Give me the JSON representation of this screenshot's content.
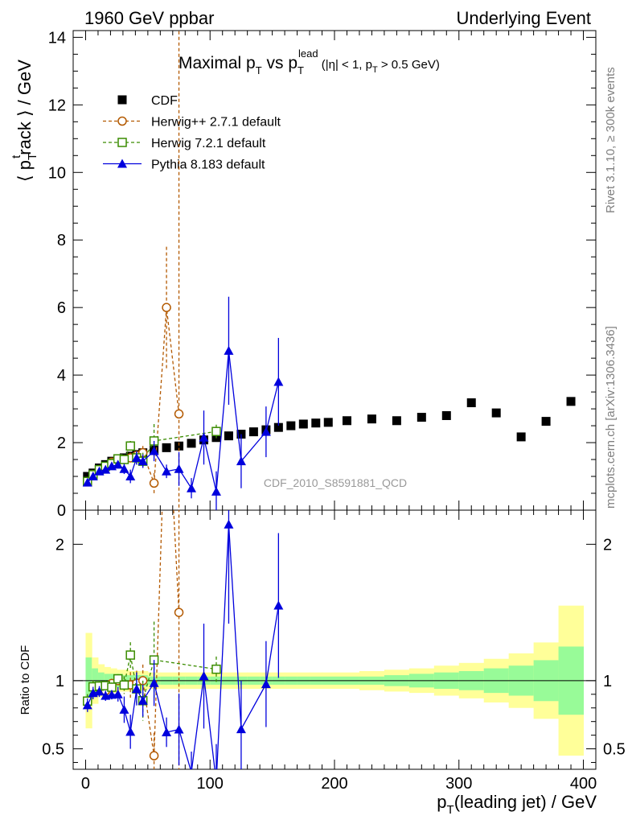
{
  "header": {
    "left": "1960 GeV ppbar",
    "right": "Underlying Event"
  },
  "side_labels": {
    "rivet": "Rivet 3.1.10, ≥ 300k events",
    "mcplots": "mcplots.cern.ch [arXiv:1306.3436]"
  },
  "watermark": "CDF_2010_S8591881_QCD",
  "title": {
    "main": "Maximal p",
    "sub_t": "T",
    "vs": " vs p",
    "sup_lead": "lead",
    "cut_open": " (|η| < 1, p",
    "cut_close": " > 0.5 GeV)"
  },
  "axis_labels": {
    "y_main": "⟨ p",
    "y_track_sup": "t",
    "y_track": "rack ⟩ / GeV",
    "y_ratio": "Ratio to CDF",
    "x_p": "p",
    "x_rest": "(leading jet) / GeV"
  },
  "colors": {
    "cdf": "#000000",
    "herwigpp": "#b35900",
    "herwig7": "#3a8c00",
    "pythia": "#0000dd",
    "band_inner": "#98fb98",
    "band_outer": "#ffff99"
  },
  "legend": [
    {
      "key": "cdf",
      "label": "CDF"
    },
    {
      "key": "herwigpp",
      "label": "Herwig++ 2.7.1 default"
    },
    {
      "key": "herwig7",
      "label": "Herwig 7.2.1 default"
    },
    {
      "key": "pythia",
      "label": "Pythia 8.183 default"
    }
  ],
  "chart_data": {
    "type": "scatter",
    "xlabel": "pT(leading jet) / GeV",
    "ylabel": "<pT track> / GeV",
    "xlim": [
      -10,
      410
    ],
    "ylim": [
      0,
      14.2
    ],
    "ratio_ylim": [
      0.35,
      2.25
    ],
    "x_ticks": [
      "0",
      "100",
      "200",
      "300",
      "400"
    ],
    "y_ticks": [
      "0",
      "2",
      "4",
      "6",
      "8",
      "10",
      "12",
      "14"
    ],
    "ratio_ticks": [
      "0.5",
      "1",
      "2"
    ],
    "series": [
      {
        "name": "CDF",
        "key": "cdf",
        "marker": "square",
        "x": [
          1.5,
          6,
          11,
          16,
          21,
          26,
          31,
          36,
          41,
          46,
          55,
          65,
          75,
          85,
          95,
          105,
          115,
          125,
          135,
          145,
          155,
          165,
          175,
          185,
          195,
          210,
          230,
          250,
          270,
          290,
          310,
          330,
          350,
          370,
          390
        ],
        "y": [
          1.0,
          1.1,
          1.25,
          1.35,
          1.45,
          1.5,
          1.55,
          1.6,
          1.65,
          1.7,
          1.78,
          1.85,
          1.9,
          1.98,
          2.08,
          2.15,
          2.2,
          2.25,
          2.32,
          2.38,
          2.45,
          2.5,
          2.55,
          2.58,
          2.6,
          2.65,
          2.7,
          2.65,
          2.75,
          2.8,
          3.18,
          2.88,
          2.17,
          2.63,
          3.22
        ]
      },
      {
        "name": "Herwig++ 2.7.1 default",
        "key": "herwigpp",
        "marker": "circle",
        "x": [
          1.5,
          6,
          11,
          16,
          21,
          26,
          31,
          36,
          41,
          46,
          55,
          65,
          75
        ],
        "y": [
          0.85,
          1.05,
          1.18,
          1.25,
          1.42,
          1.5,
          1.5,
          1.55,
          1.62,
          1.7,
          0.8,
          6.0,
          2.85
        ],
        "err": [
          0.05,
          0.05,
          0.05,
          0.05,
          0.05,
          0.05,
          0.1,
          0.15,
          0.15,
          0.2,
          0.3,
          1.8,
          14
        ]
      },
      {
        "name": "Herwig 7.2.1 default",
        "key": "herwig7",
        "marker": "open-square",
        "x": [
          1.5,
          6,
          11,
          16,
          21,
          26,
          31,
          36,
          41,
          46,
          55,
          105
        ],
        "y": [
          0.85,
          1.05,
          1.2,
          1.3,
          1.38,
          1.52,
          1.5,
          1.9,
          1.55,
          1.45,
          2.05,
          2.33
        ],
        "err": [
          0.05,
          0.05,
          0.05,
          0.05,
          0.05,
          0.05,
          0.1,
          0.15,
          0.2,
          0.25,
          0.5,
          0.2
        ]
      },
      {
        "name": "Pythia 8.183 default",
        "key": "pythia",
        "marker": "triangle",
        "x": [
          1.5,
          6,
          11,
          16,
          21,
          26,
          31,
          36,
          41,
          46,
          55,
          65,
          75,
          85,
          95,
          105,
          115,
          125,
          145,
          155
        ],
        "y": [
          0.82,
          1.0,
          1.15,
          1.2,
          1.3,
          1.35,
          1.22,
          1.0,
          1.55,
          1.45,
          1.75,
          1.15,
          1.22,
          0.65,
          2.15,
          0.55,
          4.72,
          1.45,
          2.32,
          3.8
        ],
        "err": [
          0.05,
          0.05,
          0.05,
          0.05,
          0.05,
          0.08,
          0.15,
          0.2,
          0.2,
          0.2,
          0.3,
          0.2,
          0.5,
          0.3,
          0.8,
          0.6,
          1.6,
          0.8,
          0.75,
          1.3
        ]
      }
    ],
    "ratio_band": {
      "x_edges": [
        0,
        5,
        10,
        15,
        20,
        25,
        30,
        35,
        40,
        45,
        50,
        60,
        70,
        80,
        90,
        100,
        110,
        120,
        130,
        140,
        150,
        160,
        170,
        180,
        190,
        200,
        220,
        240,
        260,
        280,
        300,
        320,
        340,
        360,
        380,
        400
      ],
      "inner_up": [
        1.17,
        1.09,
        1.06,
        1.05,
        1.05,
        1.05,
        1.04,
        1.04,
        1.04,
        1.04,
        1.03,
        1.03,
        1.03,
        1.03,
        1.03,
        1.03,
        1.03,
        1.03,
        1.03,
        1.03,
        1.03,
        1.03,
        1.03,
        1.03,
        1.03,
        1.03,
        1.03,
        1.04,
        1.05,
        1.06,
        1.07,
        1.09,
        1.11,
        1.15,
        1.25
      ],
      "outer_up": [
        1.35,
        1.17,
        1.12,
        1.1,
        1.09,
        1.08,
        1.08,
        1.07,
        1.07,
        1.07,
        1.06,
        1.06,
        1.06,
        1.06,
        1.06,
        1.06,
        1.06,
        1.06,
        1.06,
        1.06,
        1.06,
        1.06,
        1.06,
        1.06,
        1.06,
        1.06,
        1.07,
        1.08,
        1.09,
        1.11,
        1.13,
        1.16,
        1.2,
        1.28,
        1.55
      ]
    }
  }
}
